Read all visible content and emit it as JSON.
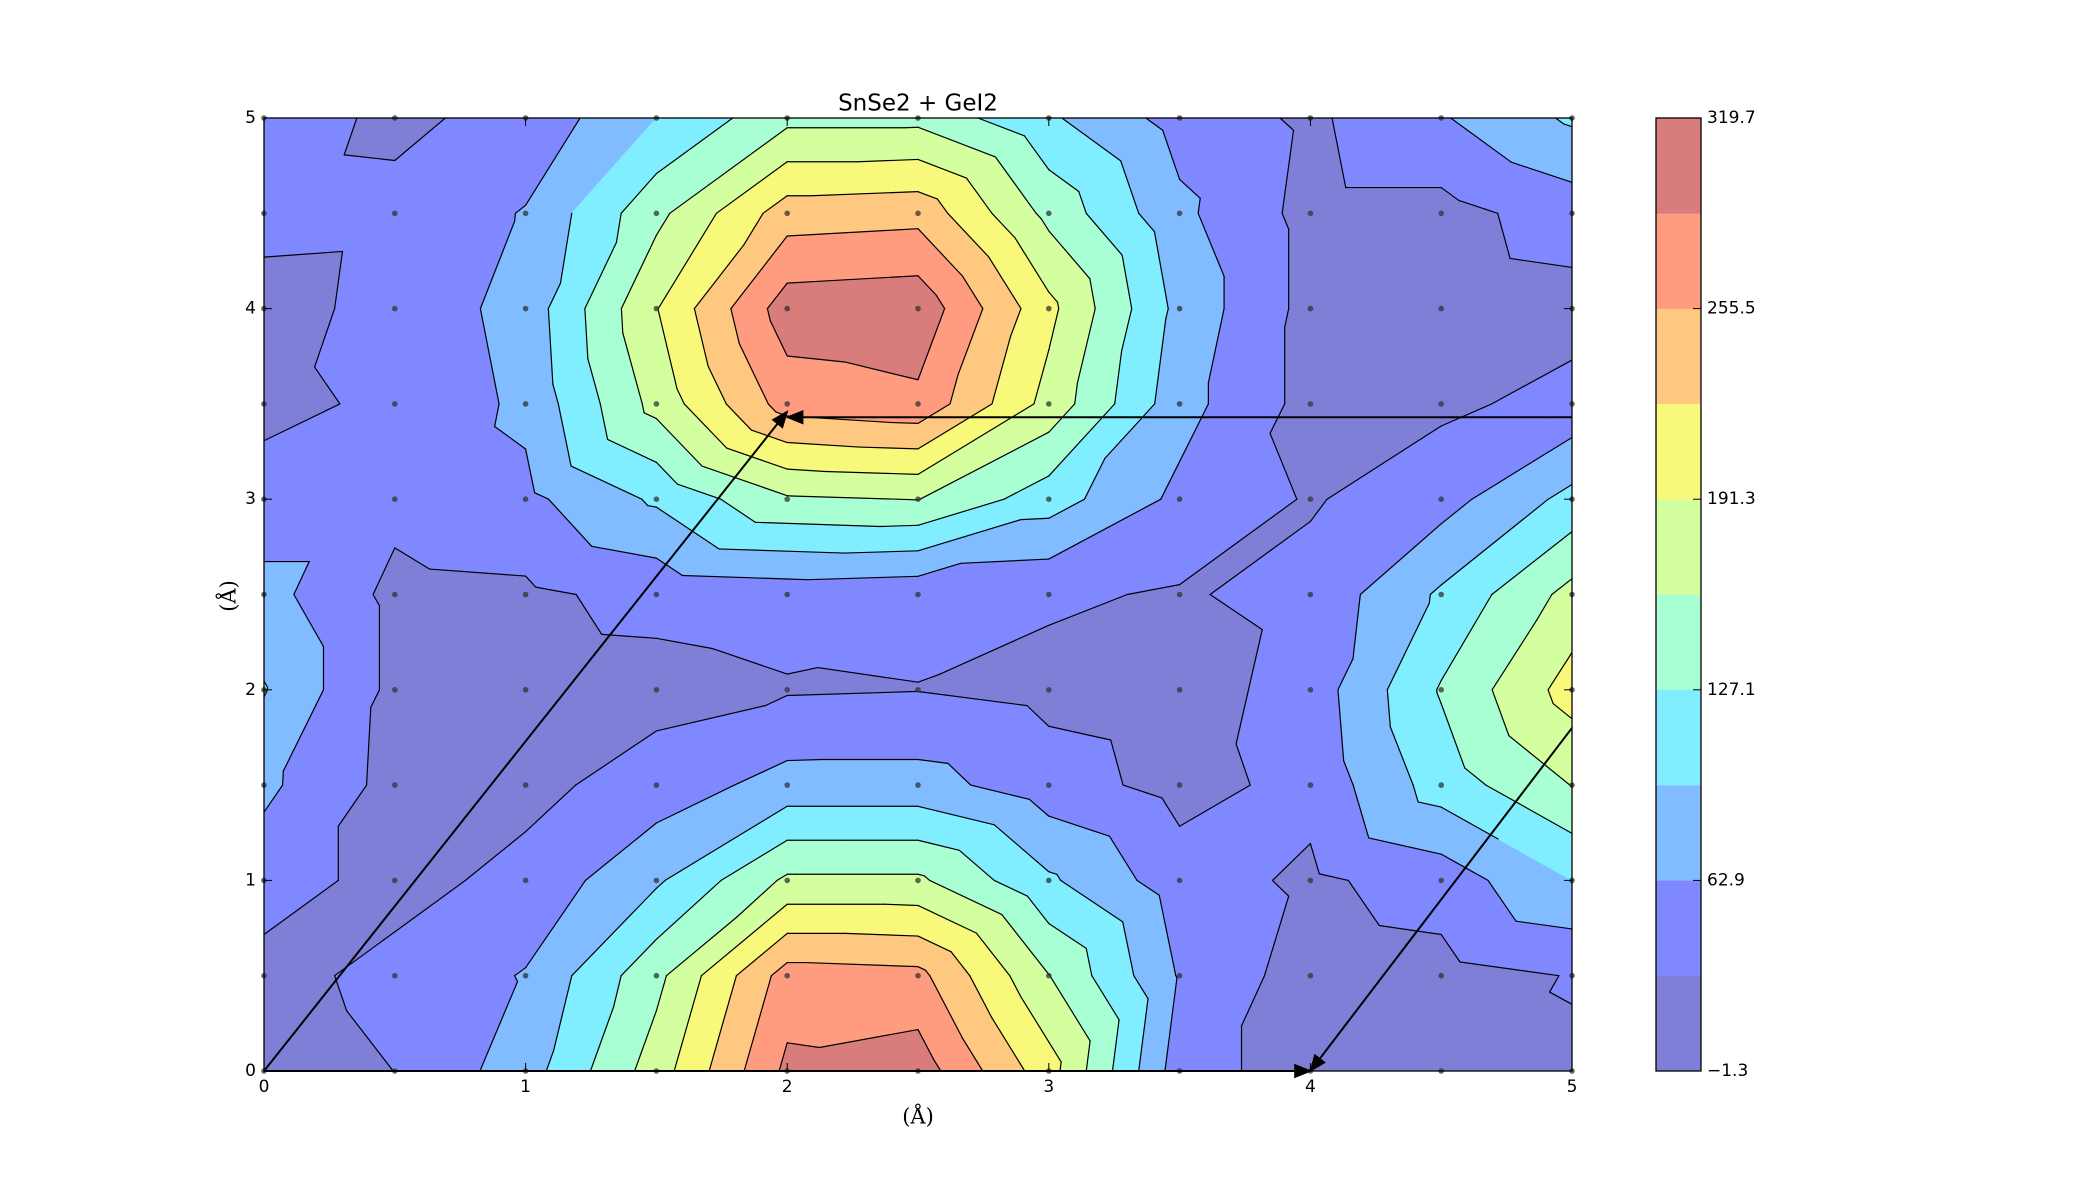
{
  "chart_data": {
    "type": "contour",
    "title": "SnSe2 + GeI2",
    "x_label": "(Å)",
    "y_label": "(Å)",
    "x": [
      0,
      0.5,
      1,
      1.5,
      2,
      2.5,
      3,
      3.5,
      4,
      4.5,
      5
    ],
    "y": [
      0,
      0.5,
      1,
      1.5,
      2,
      2.5,
      3,
      3.5,
      4,
      4.5,
      5
    ],
    "z": [
      [
        15,
        31,
        80,
        175,
        295,
        305,
        205,
        45,
        15,
        25,
        28
      ],
      [
        20,
        40,
        65,
        150,
        270,
        265,
        160,
        60,
        15,
        20,
        32
      ],
      [
        45,
        20,
        40,
        90,
        165,
        165,
        100,
        45,
        25,
        45,
        95
      ],
      [
        70,
        20,
        22,
        45,
        75,
        75,
        45,
        20,
        40,
        110,
        160
      ],
      [
        97,
        22,
        18,
        20,
        28,
        30,
        22,
        15,
        45,
        130,
        205
      ],
      [
        75,
        22,
        25,
        40,
        45,
        40,
        35,
        28,
        40,
        100,
        170
      ],
      [
        40,
        40,
        55,
        100,
        155,
        160,
        110,
        55,
        28,
        50,
        105
      ],
      [
        25,
        35,
        70,
        170,
        270,
        280,
        180,
        75,
        20,
        25,
        40
      ],
      [
        20,
        40,
        75,
        190,
        305,
        310,
        200,
        85,
        20,
        15,
        20
      ],
      [
        40,
        38,
        65,
        150,
        240,
        245,
        150,
        70,
        20,
        20,
        45
      ],
      [
        45,
        25,
        40,
        95,
        150,
        150,
        100,
        50,
        25,
        60,
        100
      ]
    ],
    "levels": [
      -1.3,
      30.8,
      62.9,
      95,
      127.1,
      159.2,
      191.3,
      223.4,
      255.5,
      287.6,
      319.7
    ],
    "colors": [
      "#7f7fd8",
      "#7f88ff",
      "#80bcff",
      "#80eeff",
      "#a8ffd4",
      "#d4ff9e",
      "#f8f87a",
      "#ffc880",
      "#ff9c80",
      "#d87c7c"
    ],
    "xlim": [
      0,
      5
    ],
    "ylim": [
      0,
      5
    ],
    "xticks": [
      0,
      1,
      2,
      3,
      4,
      5
    ],
    "yticks": [
      0,
      1,
      2,
      3,
      4,
      5
    ],
    "colorbar_ticks": [
      {
        "value": -1.3,
        "label": "−1.3"
      },
      62.9,
      127.1,
      191.3,
      255.5,
      319.7
    ],
    "arrows": [
      {
        "start": [
          0,
          0
        ],
        "end": [
          2,
          3.46
        ]
      },
      {
        "start": [
          0,
          0
        ],
        "end": [
          4,
          0
        ]
      },
      {
        "start": [
          5,
          1.8
        ],
        "end": [
          4,
          0
        ]
      },
      {
        "start": [
          5,
          3.43
        ],
        "end": [
          2,
          3.43
        ]
      }
    ]
  }
}
